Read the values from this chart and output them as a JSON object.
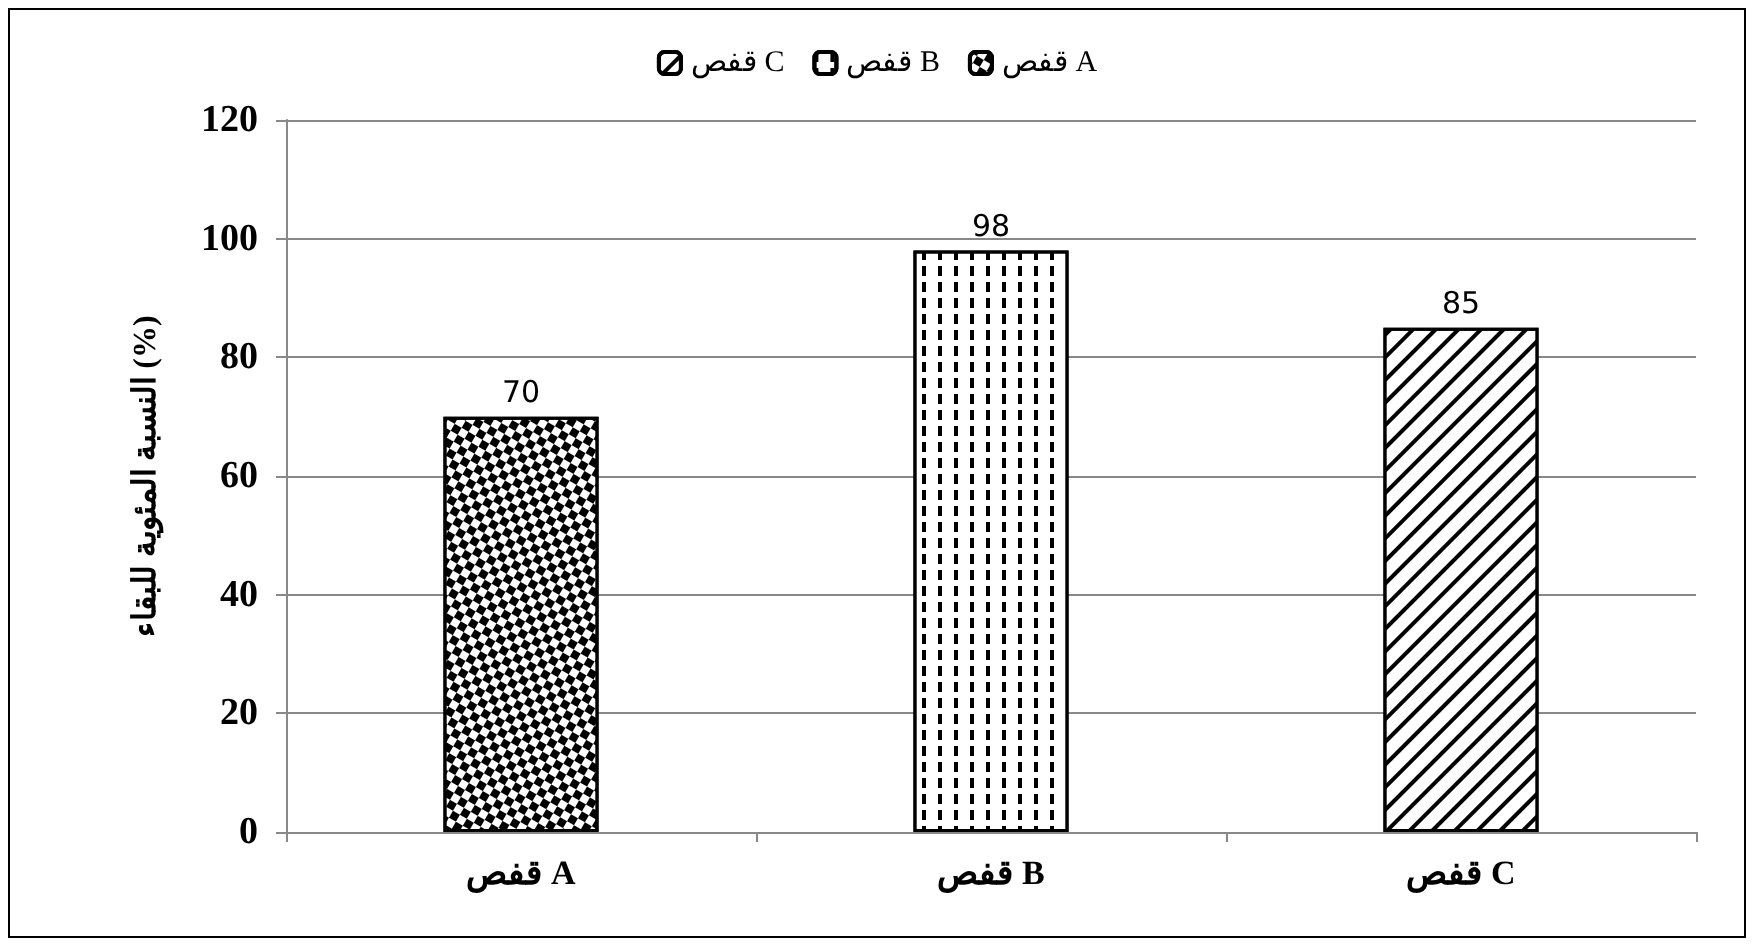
{
  "chart_data": {
    "type": "bar",
    "ylabel": "النسبة المئوية للبقاء (%)",
    "categories": [
      "قفص A",
      "قفص B",
      "قفص C"
    ],
    "series": [
      {
        "name": "قفص A",
        "color": "#ffffff",
        "values": [
          70,
          null,
          null
        ]
      },
      {
        "name": "قفص B",
        "color": "#ffffff",
        "values": [
          null,
          98,
          null
        ]
      },
      {
        "name": "قفص C",
        "color": "#ffffff",
        "values": [
          null,
          null,
          85
        ]
      }
    ],
    "stacked": true,
    "ylim": [
      0,
      120
    ],
    "yticks": [
      0,
      20,
      40,
      60,
      80,
      100,
      120
    ],
    "grid": "y",
    "legend": "top",
    "data_labels": true
  }
}
